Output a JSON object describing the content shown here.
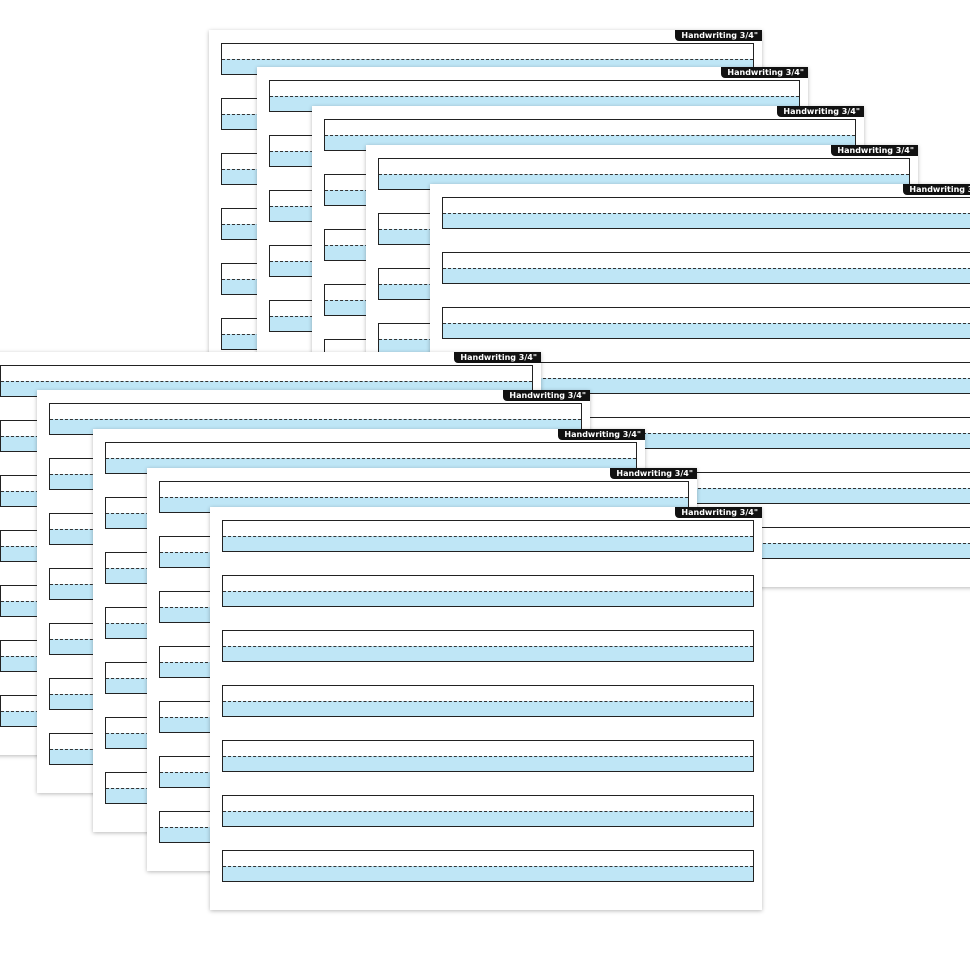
{
  "sheet_label": "Handwriting 3/4\"",
  "rows_per_sheet": 7,
  "colors": {
    "writing_band": "#bfe6f6",
    "tab": "#111111",
    "line": "#222222"
  },
  "sheet_count": 10
}
